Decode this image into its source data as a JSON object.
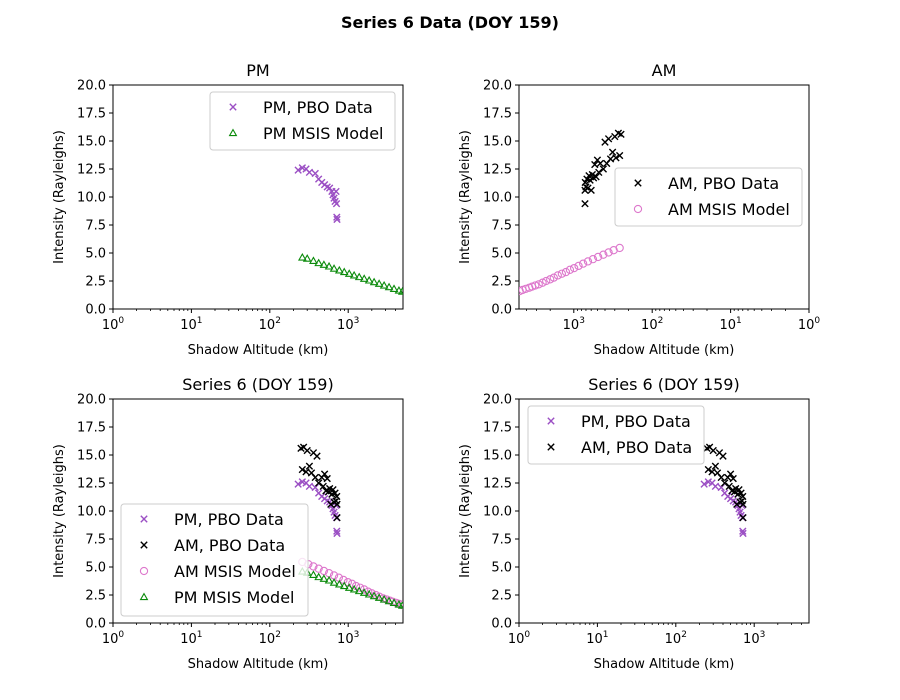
{
  "figure_title": "Series 6 Data (DOY 159)",
  "colors": {
    "pm_data": "#9b4fc4",
    "am_data": "#000000",
    "am_model": "#dd77cc",
    "pm_model": "#0a8a0a"
  },
  "chart_data": [
    {
      "type": "scatter",
      "title": "PM",
      "xlabel": "Shadow Altitude (km)",
      "ylabel": "Intensity (Rayleighs)",
      "xscale": "log",
      "xlim": [
        1,
        5000
      ],
      "xreversed": false,
      "xticks": [
        1,
        10,
        100,
        1000
      ],
      "ylim": [
        0,
        20
      ],
      "yticks": [
        "0.0",
        "2.5",
        "5.0",
        "7.5",
        "10.0",
        "12.5",
        "15.0",
        "17.5",
        "20.0"
      ],
      "legend_position": "upper-right",
      "series": [
        {
          "name": "PM, PBO Data",
          "marker": "x",
          "color": "#9b4fc4",
          "points": [
            [
              230,
              12.4
            ],
            [
              260,
              12.6
            ],
            [
              290,
              12.5
            ],
            [
              320,
              12.2
            ],
            [
              380,
              12.1
            ],
            [
              420,
              11.6
            ],
            [
              460,
              11.3
            ],
            [
              500,
              11.1
            ],
            [
              540,
              10.9
            ],
            [
              580,
              10.8
            ],
            [
              620,
              10.5
            ],
            [
              640,
              10.2
            ],
            [
              660,
              9.9
            ],
            [
              680,
              9.6
            ],
            [
              700,
              10.5
            ],
            [
              710,
              9.4
            ],
            [
              715,
              8.2
            ],
            [
              720,
              8.0
            ]
          ]
        },
        {
          "name": "PM MSIS Model",
          "marker": "triangle",
          "color": "#0a8a0a",
          "points": [
            [
              260,
              4.6
            ],
            [
              300,
              4.5
            ],
            [
              360,
              4.3
            ],
            [
              420,
              4.1
            ],
            [
              490,
              3.95
            ],
            [
              570,
              3.8
            ],
            [
              660,
              3.6
            ],
            [
              770,
              3.45
            ],
            [
              890,
              3.3
            ],
            [
              1030,
              3.15
            ],
            [
              1190,
              3.0
            ],
            [
              1380,
              2.85
            ],
            [
              1600,
              2.7
            ],
            [
              1850,
              2.55
            ],
            [
              2140,
              2.4
            ],
            [
              2480,
              2.25
            ],
            [
              2870,
              2.1
            ],
            [
              3320,
              1.95
            ],
            [
              3840,
              1.8
            ],
            [
              4440,
              1.65
            ],
            [
              4900,
              1.55
            ]
          ]
        }
      ]
    },
    {
      "type": "scatter",
      "title": "AM",
      "xlabel": "Shadow Altitude (km)",
      "ylabel": "Intensity (Rayleighs)",
      "xscale": "log",
      "xlim": [
        5000,
        1
      ],
      "xreversed": true,
      "xticks": [
        1000,
        100,
        10,
        1
      ],
      "ylim": [
        0,
        20
      ],
      "yticks": [
        "0.0",
        "2.5",
        "5.0",
        "7.5",
        "10.0",
        "12.5",
        "15.0",
        "17.5",
        "20.0"
      ],
      "legend_position": "center-right",
      "series": [
        {
          "name": "AM, PBO Data",
          "marker": "x",
          "color": "#000000",
          "points": [
            [
              720,
              9.4
            ],
            [
              720,
              10.6
            ],
            [
              715,
              11.3
            ],
            [
              700,
              10.9
            ],
            [
              680,
              11.6
            ],
            [
              660,
              10.8
            ],
            [
              640,
              11.9
            ],
            [
              620,
              11.5
            ],
            [
              600,
              10.6
            ],
            [
              580,
              12.0
            ],
            [
              560,
              11.7
            ],
            [
              540,
              12.9
            ],
            [
              520,
              11.8
            ],
            [
              500,
              13.3
            ],
            [
              480,
              12.2
            ],
            [
              460,
              13.0
            ],
            [
              420,
              12.5
            ],
            [
              400,
              14.9
            ],
            [
              380,
              13.0
            ],
            [
              360,
              15.2
            ],
            [
              340,
              13.4
            ],
            [
              320,
              14.0
            ],
            [
              300,
              15.4
            ],
            [
              290,
              13.5
            ],
            [
              270,
              15.7
            ],
            [
              260,
              13.7
            ],
            [
              250,
              15.6
            ]
          ]
        },
        {
          "name": "AM MSIS Model",
          "marker": "circle",
          "color": "#dd77cc",
          "points": [
            [
              4900,
              1.6
            ],
            [
              4500,
              1.7
            ],
            [
              4100,
              1.8
            ],
            [
              3700,
              1.9
            ],
            [
              3400,
              2.0
            ],
            [
              3100,
              2.1
            ],
            [
              2800,
              2.2
            ],
            [
              2500,
              2.35
            ],
            [
              2250,
              2.5
            ],
            [
              2000,
              2.65
            ],
            [
              1800,
              2.8
            ],
            [
              1600,
              3.0
            ],
            [
              1420,
              3.15
            ],
            [
              1260,
              3.3
            ],
            [
              1120,
              3.5
            ],
            [
              990,
              3.65
            ],
            [
              870,
              3.85
            ],
            [
              760,
              4.05
            ],
            [
              660,
              4.25
            ],
            [
              570,
              4.45
            ],
            [
              490,
              4.65
            ],
            [
              420,
              4.85
            ],
            [
              360,
              5.05
            ],
            [
              310,
              5.25
            ],
            [
              260,
              5.45
            ]
          ]
        }
      ]
    },
    {
      "type": "scatter",
      "title": "Series 6 (DOY 159)",
      "xlabel": "Shadow Altitude (km)",
      "ylabel": "Intensity (Rayleighs)",
      "xscale": "log",
      "xlim": [
        1,
        5000
      ],
      "xreversed": false,
      "xticks": [
        1,
        10,
        100,
        1000
      ],
      "ylim": [
        0,
        20
      ],
      "yticks": [
        "0.0",
        "2.5",
        "5.0",
        "7.5",
        "10.0",
        "12.5",
        "15.0",
        "17.5",
        "20.0"
      ],
      "legend_position": "lower-left",
      "series": [
        {
          "name": "PM, PBO Data",
          "marker": "x",
          "color": "#9b4fc4",
          "points": [
            [
              230,
              12.4
            ],
            [
              260,
              12.6
            ],
            [
              290,
              12.5
            ],
            [
              320,
              12.2
            ],
            [
              380,
              12.1
            ],
            [
              420,
              11.6
            ],
            [
              460,
              11.3
            ],
            [
              500,
              11.1
            ],
            [
              540,
              10.9
            ],
            [
              580,
              10.8
            ],
            [
              620,
              10.5
            ],
            [
              640,
              10.2
            ],
            [
              660,
              9.9
            ],
            [
              680,
              9.6
            ],
            [
              700,
              10.5
            ],
            [
              710,
              9.4
            ],
            [
              715,
              8.2
            ],
            [
              720,
              8.0
            ]
          ]
        },
        {
          "name": "AM, PBO Data",
          "marker": "x",
          "color": "#000000",
          "points": [
            [
              720,
              9.4
            ],
            [
              720,
              10.6
            ],
            [
              715,
              11.3
            ],
            [
              700,
              10.9
            ],
            [
              680,
              11.6
            ],
            [
              660,
              10.8
            ],
            [
              640,
              11.9
            ],
            [
              620,
              11.5
            ],
            [
              600,
              10.6
            ],
            [
              580,
              12.0
            ],
            [
              560,
              11.7
            ],
            [
              540,
              12.9
            ],
            [
              520,
              11.8
            ],
            [
              500,
              13.3
            ],
            [
              480,
              12.2
            ],
            [
              460,
              13.0
            ],
            [
              420,
              12.5
            ],
            [
              400,
              14.9
            ],
            [
              380,
              13.0
            ],
            [
              360,
              15.2
            ],
            [
              340,
              13.4
            ],
            [
              320,
              14.0
            ],
            [
              300,
              15.4
            ],
            [
              290,
              13.5
            ],
            [
              270,
              15.7
            ],
            [
              260,
              13.7
            ],
            [
              250,
              15.6
            ]
          ]
        },
        {
          "name": "AM MSIS Model",
          "marker": "circle",
          "color": "#dd77cc",
          "points": [
            [
              4900,
              1.6
            ],
            [
              4500,
              1.7
            ],
            [
              4100,
              1.8
            ],
            [
              3700,
              1.9
            ],
            [
              3400,
              2.0
            ],
            [
              3100,
              2.1
            ],
            [
              2800,
              2.2
            ],
            [
              2500,
              2.35
            ],
            [
              2250,
              2.5
            ],
            [
              2000,
              2.65
            ],
            [
              1800,
              2.8
            ],
            [
              1600,
              3.0
            ],
            [
              1420,
              3.15
            ],
            [
              1260,
              3.3
            ],
            [
              1120,
              3.5
            ],
            [
              990,
              3.65
            ],
            [
              870,
              3.85
            ],
            [
              760,
              4.05
            ],
            [
              660,
              4.25
            ],
            [
              570,
              4.45
            ],
            [
              490,
              4.65
            ],
            [
              420,
              4.85
            ],
            [
              360,
              5.05
            ],
            [
              310,
              5.25
            ],
            [
              260,
              5.45
            ]
          ]
        },
        {
          "name": "PM MSIS Model",
          "marker": "triangle",
          "color": "#0a8a0a",
          "points": [
            [
              260,
              4.6
            ],
            [
              300,
              4.5
            ],
            [
              360,
              4.3
            ],
            [
              420,
              4.1
            ],
            [
              490,
              3.95
            ],
            [
              570,
              3.8
            ],
            [
              660,
              3.6
            ],
            [
              770,
              3.45
            ],
            [
              890,
              3.3
            ],
            [
              1030,
              3.15
            ],
            [
              1190,
              3.0
            ],
            [
              1380,
              2.85
            ],
            [
              1600,
              2.7
            ],
            [
              1850,
              2.55
            ],
            [
              2140,
              2.4
            ],
            [
              2480,
              2.25
            ],
            [
              2870,
              2.1
            ],
            [
              3320,
              1.95
            ],
            [
              3840,
              1.8
            ],
            [
              4440,
              1.65
            ],
            [
              4900,
              1.55
            ]
          ]
        }
      ]
    },
    {
      "type": "scatter",
      "title": "Series 6 (DOY 159)",
      "xlabel": "Shadow Altitude (km)",
      "ylabel": "Intensity (Rayleighs)",
      "xscale": "log",
      "xlim": [
        1,
        5000
      ],
      "xreversed": false,
      "xticks": [
        1,
        10,
        100,
        1000
      ],
      "ylim": [
        0,
        20
      ],
      "yticks": [
        "0.0",
        "2.5",
        "5.0",
        "7.5",
        "10.0",
        "12.5",
        "15.0",
        "17.5",
        "20.0"
      ],
      "legend_position": "upper-left",
      "series": [
        {
          "name": "PM, PBO Data",
          "marker": "x",
          "color": "#9b4fc4",
          "points": [
            [
              230,
              12.4
            ],
            [
              260,
              12.6
            ],
            [
              290,
              12.5
            ],
            [
              320,
              12.2
            ],
            [
              380,
              12.1
            ],
            [
              420,
              11.6
            ],
            [
              460,
              11.3
            ],
            [
              500,
              11.1
            ],
            [
              540,
              10.9
            ],
            [
              580,
              10.8
            ],
            [
              620,
              10.5
            ],
            [
              640,
              10.2
            ],
            [
              660,
              9.9
            ],
            [
              680,
              9.6
            ],
            [
              700,
              10.5
            ],
            [
              710,
              9.4
            ],
            [
              715,
              8.2
            ],
            [
              720,
              8.0
            ]
          ]
        },
        {
          "name": "AM, PBO Data",
          "marker": "x",
          "color": "#000000",
          "points": [
            [
              720,
              9.4
            ],
            [
              720,
              10.6
            ],
            [
              715,
              11.3
            ],
            [
              700,
              10.9
            ],
            [
              680,
              11.6
            ],
            [
              660,
              10.8
            ],
            [
              640,
              11.9
            ],
            [
              620,
              11.5
            ],
            [
              600,
              10.6
            ],
            [
              580,
              12.0
            ],
            [
              560,
              11.7
            ],
            [
              540,
              12.9
            ],
            [
              520,
              11.8
            ],
            [
              500,
              13.3
            ],
            [
              480,
              12.2
            ],
            [
              460,
              13.0
            ],
            [
              420,
              12.5
            ],
            [
              400,
              14.9
            ],
            [
              380,
              13.0
            ],
            [
              360,
              15.2
            ],
            [
              340,
              13.4
            ],
            [
              320,
              14.0
            ],
            [
              300,
              15.4
            ],
            [
              290,
              13.5
            ],
            [
              270,
              15.7
            ],
            [
              260,
              13.7
            ],
            [
              250,
              15.6
            ]
          ]
        }
      ]
    }
  ]
}
